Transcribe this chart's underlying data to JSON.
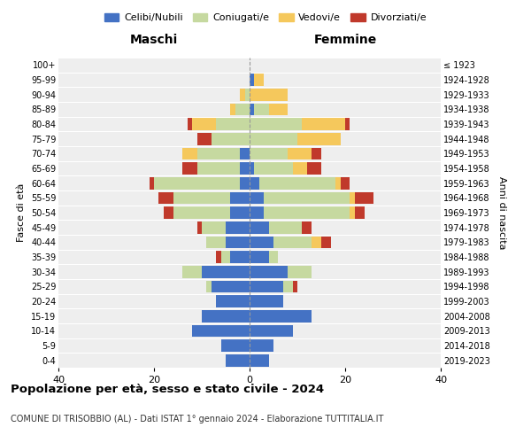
{
  "age_groups": [
    "0-4",
    "5-9",
    "10-14",
    "15-19",
    "20-24",
    "25-29",
    "30-34",
    "35-39",
    "40-44",
    "45-49",
    "50-54",
    "55-59",
    "60-64",
    "65-69",
    "70-74",
    "75-79",
    "80-84",
    "85-89",
    "90-94",
    "95-99",
    "100+"
  ],
  "birth_years": [
    "2019-2023",
    "2014-2018",
    "2009-2013",
    "2004-2008",
    "1999-2003",
    "1994-1998",
    "1989-1993",
    "1984-1988",
    "1979-1983",
    "1974-1978",
    "1969-1973",
    "1964-1968",
    "1959-1963",
    "1954-1958",
    "1949-1953",
    "1944-1948",
    "1939-1943",
    "1934-1938",
    "1929-1933",
    "1924-1928",
    "≤ 1923"
  ],
  "colors": {
    "celibi": "#4472C4",
    "coniugati": "#C6D9A0",
    "vedovi": "#F5C85C",
    "divorziati": "#C0392B"
  },
  "legend_labels": [
    "Celibi/Nubili",
    "Coniugati/e",
    "Vedovi/e",
    "Divorziati/e"
  ],
  "maschi": {
    "celibi": [
      5,
      6,
      12,
      10,
      7,
      8,
      10,
      4,
      5,
      5,
      4,
      4,
      2,
      2,
      2,
      0,
      0,
      0,
      0,
      0,
      0
    ],
    "coniugati": [
      0,
      0,
      0,
      0,
      0,
      1,
      4,
      2,
      4,
      5,
      12,
      12,
      18,
      9,
      9,
      8,
      7,
      3,
      1,
      0,
      0
    ],
    "vedovi": [
      0,
      0,
      0,
      0,
      0,
      0,
      0,
      0,
      0,
      0,
      0,
      0,
      0,
      0,
      3,
      0,
      5,
      1,
      1,
      0,
      0
    ],
    "divorziati": [
      0,
      0,
      0,
      0,
      0,
      0,
      0,
      1,
      0,
      1,
      2,
      3,
      1,
      3,
      0,
      3,
      1,
      0,
      0,
      0,
      0
    ]
  },
  "femmine": {
    "celibi": [
      4,
      5,
      9,
      13,
      7,
      7,
      8,
      4,
      5,
      4,
      3,
      3,
      2,
      1,
      0,
      0,
      0,
      1,
      0,
      1,
      0
    ],
    "coniugati": [
      0,
      0,
      0,
      0,
      0,
      2,
      5,
      2,
      8,
      7,
      18,
      18,
      16,
      8,
      8,
      10,
      11,
      3,
      0,
      0,
      0
    ],
    "vedovi": [
      0,
      0,
      0,
      0,
      0,
      0,
      0,
      0,
      2,
      0,
      1,
      1,
      1,
      3,
      5,
      9,
      9,
      4,
      8,
      2,
      0
    ],
    "divorziati": [
      0,
      0,
      0,
      0,
      0,
      1,
      0,
      0,
      2,
      2,
      2,
      4,
      2,
      3,
      2,
      0,
      1,
      0,
      0,
      0,
      0
    ]
  },
  "xlim": 40,
  "title": "Popolazione per età, sesso e stato civile - 2024",
  "subtitle": "COMUNE DI TRISOBBIO (AL) - Dati ISTAT 1° gennaio 2024 - Elaborazione TUTTITALIA.IT",
  "xlabel_left": "Maschi",
  "xlabel_right": "Femmine",
  "ylabel_left": "Fasce di età",
  "ylabel_right": "Anni di nascita",
  "background_color": "#eeeeee"
}
